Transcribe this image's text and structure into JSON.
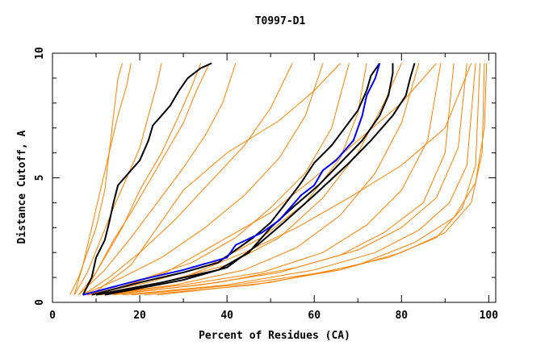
{
  "chart_data": {
    "type": "line",
    "title": "T0997-D1",
    "xlabel": "Percent of Residues (CA)",
    "ylabel": "Distance Cutoff, A",
    "xlim": [
      0,
      101.6
    ],
    "ylim": [
      0,
      10
    ],
    "xticks": [
      "0",
      "20",
      "40",
      "60",
      "80",
      "100"
    ],
    "yticks": [
      "0",
      "5",
      "10"
    ],
    "grid": false,
    "colors": {
      "models": "#ff8000",
      "highlight": "#0000ff",
      "reference": "#000000"
    },
    "series": [
      {
        "color": "#ff8000",
        "points": [
          [
            4,
            0.3
          ],
          [
            6,
            1
          ],
          [
            8,
            2
          ],
          [
            10,
            3
          ],
          [
            12,
            4.5
          ],
          [
            13,
            6
          ],
          [
            14,
            7.5
          ],
          [
            15,
            9
          ],
          [
            16,
            9.6
          ]
        ]
      },
      {
        "color": "#ff8000",
        "points": [
          [
            5,
            0.3
          ],
          [
            8,
            1.2
          ],
          [
            11,
            2.5
          ],
          [
            14,
            3.8
          ],
          [
            17,
            5
          ],
          [
            20,
            6.2
          ],
          [
            22,
            7.5
          ],
          [
            24,
            8.8
          ],
          [
            25,
            9.6
          ]
        ]
      },
      {
        "color": "#ff8000",
        "points": [
          [
            6,
            0.3
          ],
          [
            10,
            1.2
          ],
          [
            14,
            2.5
          ],
          [
            18,
            3.6
          ],
          [
            22,
            4.8
          ],
          [
            26,
            6
          ],
          [
            30,
            7.2
          ],
          [
            33,
            8.5
          ],
          [
            36,
            9.6
          ]
        ]
      },
      {
        "color": "#ff8000",
        "points": [
          [
            6,
            0.3
          ],
          [
            12,
            1.3
          ],
          [
            18,
            2.6
          ],
          [
            24,
            4
          ],
          [
            30,
            5.4
          ],
          [
            35,
            6.7
          ],
          [
            39,
            8
          ],
          [
            42,
            9.6
          ]
        ]
      },
      {
        "color": "#ff8000",
        "points": [
          [
            7,
            0.3
          ],
          [
            13,
            1
          ],
          [
            20,
            2
          ],
          [
            28,
            3.3
          ],
          [
            36,
            4.8
          ],
          [
            44,
            6.3
          ],
          [
            50,
            7.8
          ],
          [
            55,
            9.6
          ]
        ]
      },
      {
        "color": "#ff8000",
        "points": [
          [
            7,
            0.3
          ],
          [
            16,
            1
          ],
          [
            25,
            1.8
          ],
          [
            35,
            3
          ],
          [
            44,
            4.3
          ],
          [
            52,
            5.8
          ],
          [
            58,
            7.5
          ],
          [
            62,
            9.6
          ]
        ]
      },
      {
        "color": "#ff8000",
        "points": [
          [
            8,
            0.3
          ],
          [
            20,
            0.9
          ],
          [
            32,
            1.6
          ],
          [
            42,
            2.6
          ],
          [
            50,
            3.8
          ],
          [
            58,
            5.2
          ],
          [
            64,
            7
          ],
          [
            68,
            9.6
          ]
        ]
      },
      {
        "color": "#ff8000",
        "points": [
          [
            8,
            0.3
          ],
          [
            22,
            0.8
          ],
          [
            36,
            1.5
          ],
          [
            48,
            2.6
          ],
          [
            58,
            4
          ],
          [
            66,
            5.8
          ],
          [
            70,
            7.6
          ],
          [
            72,
            9.6
          ]
        ]
      },
      {
        "color": "#ff8000",
        "points": [
          [
            9,
            0.3
          ],
          [
            25,
            0.8
          ],
          [
            40,
            1.5
          ],
          [
            52,
            2.6
          ],
          [
            62,
            4.2
          ],
          [
            70,
            6
          ],
          [
            76,
            8
          ],
          [
            80,
            9.6
          ]
        ]
      },
      {
        "color": "#ff8000",
        "points": [
          [
            10,
            0.3
          ],
          [
            28,
            0.7
          ],
          [
            44,
            1.3
          ],
          [
            56,
            2.2
          ],
          [
            66,
            3.5
          ],
          [
            74,
            5.2
          ],
          [
            80,
            7.2
          ],
          [
            84,
            9.6
          ]
        ]
      },
      {
        "color": "#ff8000",
        "points": [
          [
            11,
            0.3
          ],
          [
            30,
            0.7
          ],
          [
            48,
            1.2
          ],
          [
            62,
            2
          ],
          [
            72,
            3.1
          ],
          [
            80,
            4.5
          ],
          [
            86,
            6.5
          ],
          [
            89,
            9.6
          ]
        ]
      },
      {
        "color": "#ff8000",
        "points": [
          [
            12,
            0.3
          ],
          [
            34,
            0.7
          ],
          [
            52,
            1.2
          ],
          [
            66,
            1.9
          ],
          [
            76,
            2.8
          ],
          [
            85,
            4
          ],
          [
            90,
            6
          ],
          [
            92,
            9.6
          ]
        ]
      },
      {
        "color": "#ff8000",
        "points": [
          [
            14,
            0.3
          ],
          [
            38,
            0.8
          ],
          [
            56,
            1.4
          ],
          [
            70,
            2.1
          ],
          [
            80,
            3
          ],
          [
            88,
            4.2
          ],
          [
            93,
            6.2
          ],
          [
            95,
            9.6
          ]
        ]
      },
      {
        "color": "#ff8000",
        "points": [
          [
            16,
            0.3
          ],
          [
            40,
            0.7
          ],
          [
            60,
            1.3
          ],
          [
            74,
            2
          ],
          [
            84,
            2.9
          ],
          [
            91,
            4
          ],
          [
            95,
            5.5
          ],
          [
            97,
            9.6
          ]
        ]
      },
      {
        "color": "#ff8000",
        "points": [
          [
            18,
            0.3
          ],
          [
            42,
            0.7
          ],
          [
            62,
            1.2
          ],
          [
            77,
            1.8
          ],
          [
            88,
            2.6
          ],
          [
            94,
            3.8
          ],
          [
            97,
            5.5
          ],
          [
            98,
            9.6
          ]
        ]
      },
      {
        "color": "#ff8000",
        "points": [
          [
            21,
            0.3
          ],
          [
            46,
            0.7
          ],
          [
            66,
            1.3
          ],
          [
            80,
            2
          ],
          [
            90,
            2.8
          ],
          [
            96,
            4
          ],
          [
            98.5,
            6
          ],
          [
            99,
            9.6
          ]
        ]
      },
      {
        "color": "#ff8000",
        "points": [
          [
            24,
            0.3
          ],
          [
            50,
            0.8
          ],
          [
            70,
            1.5
          ],
          [
            83,
            2.4
          ],
          [
            92,
            3.4
          ],
          [
            97,
            4.8
          ],
          [
            99,
            7
          ],
          [
            99.5,
            9.6
          ]
        ]
      },
      {
        "color": "#ff8000",
        "points": [
          [
            9,
            0.3
          ],
          [
            18,
            1.5
          ],
          [
            24,
            3
          ],
          [
            30,
            4.5
          ],
          [
            40,
            6
          ],
          [
            52,
            7.3
          ],
          [
            60,
            8.5
          ],
          [
            66,
            9.6
          ]
        ]
      },
      {
        "color": "#ff8000",
        "points": [
          [
            10,
            0.3
          ],
          [
            26,
            1.2
          ],
          [
            38,
            2.4
          ],
          [
            50,
            3.6
          ],
          [
            60,
            5
          ],
          [
            70,
            6.5
          ],
          [
            80,
            8
          ],
          [
            88,
            9.6
          ]
        ]
      },
      {
        "color": "#ff8000",
        "points": [
          [
            12,
            0.3
          ],
          [
            30,
            1
          ],
          [
            44,
            2
          ],
          [
            56,
            3
          ],
          [
            68,
            4.2
          ],
          [
            80,
            5.5
          ],
          [
            90,
            7
          ],
          [
            96,
            9.6
          ]
        ]
      },
      {
        "color": "#ff8000",
        "points": [
          [
            5,
            0.3
          ],
          [
            7,
            1.5
          ],
          [
            9,
            3
          ],
          [
            11,
            4.5
          ],
          [
            13,
            6
          ],
          [
            15,
            7.5
          ],
          [
            17,
            8.7
          ],
          [
            18,
            9.6
          ]
        ]
      },
      {
        "color": "#ff8000",
        "points": [
          [
            7,
            0.3
          ],
          [
            11,
            1.5
          ],
          [
            16,
            3
          ],
          [
            20,
            4.5
          ],
          [
            25,
            6
          ],
          [
            29,
            7.5
          ],
          [
            32,
            8.7
          ],
          [
            34,
            9.6
          ]
        ]
      },
      {
        "color": "#000000",
        "points": [
          [
            7,
            0.3
          ],
          [
            9,
            1
          ],
          [
            10,
            1.8
          ],
          [
            12,
            2.5
          ],
          [
            13,
            3.2
          ],
          [
            14,
            4
          ],
          [
            15,
            4.7
          ],
          [
            17,
            5.1
          ],
          [
            20,
            5.7
          ],
          [
            22,
            6.5
          ],
          [
            23,
            7.1
          ],
          [
            25,
            7.5
          ],
          [
            27,
            7.9
          ],
          [
            29,
            8.5
          ],
          [
            31,
            9
          ],
          [
            34,
            9.4
          ],
          [
            36.5,
            9.6
          ]
        ]
      },
      {
        "color": "#000000",
        "points": [
          [
            9,
            0.3
          ],
          [
            20,
            0.8
          ],
          [
            30,
            1.2
          ],
          [
            38,
            1.6
          ],
          [
            42,
            2.1
          ],
          [
            46,
            2.6
          ],
          [
            50,
            3.2
          ],
          [
            54,
            4.1
          ],
          [
            57,
            4.8
          ],
          [
            60,
            5.6
          ],
          [
            64,
            6.3
          ],
          [
            67,
            7
          ],
          [
            70,
            7.7
          ],
          [
            72,
            8.5
          ],
          [
            73,
            9.1
          ],
          [
            75,
            9.6
          ]
        ]
      },
      {
        "color": "#000000",
        "points": [
          [
            10,
            0.3
          ],
          [
            25,
            0.8
          ],
          [
            38,
            1.3
          ],
          [
            45,
            2
          ],
          [
            50,
            3
          ],
          [
            55,
            3.8
          ],
          [
            61,
            4.7
          ],
          [
            66,
            5.6
          ],
          [
            71,
            6.5
          ],
          [
            75,
            7.5
          ],
          [
            77,
            8.3
          ],
          [
            78,
            9.2
          ],
          [
            78,
            9.6
          ]
        ]
      },
      {
        "color": "#000000",
        "points": [
          [
            12,
            0.3
          ],
          [
            30,
            0.9
          ],
          [
            40,
            1.4
          ],
          [
            47,
            2.3
          ],
          [
            53,
            3.2
          ],
          [
            60,
            4.3
          ],
          [
            68,
            5.6
          ],
          [
            73,
            6.5
          ],
          [
            78,
            7.5
          ],
          [
            81,
            8.3
          ],
          [
            82,
            9
          ],
          [
            83,
            9.6
          ]
        ]
      },
      {
        "color": "#0000ff",
        "points": [
          [
            7,
            0.3
          ],
          [
            20,
            0.9
          ],
          [
            30,
            1.3
          ],
          [
            40,
            1.8
          ],
          [
            42,
            2.3
          ],
          [
            48,
            2.8
          ],
          [
            52,
            3.3
          ],
          [
            57,
            4.3
          ],
          [
            60,
            4.7
          ],
          [
            62,
            5.3
          ],
          [
            65,
            5.7
          ],
          [
            69,
            6.5
          ],
          [
            71,
            7.5
          ],
          [
            72,
            8.3
          ],
          [
            74,
            9
          ],
          [
            75,
            9.6
          ]
        ]
      }
    ]
  }
}
